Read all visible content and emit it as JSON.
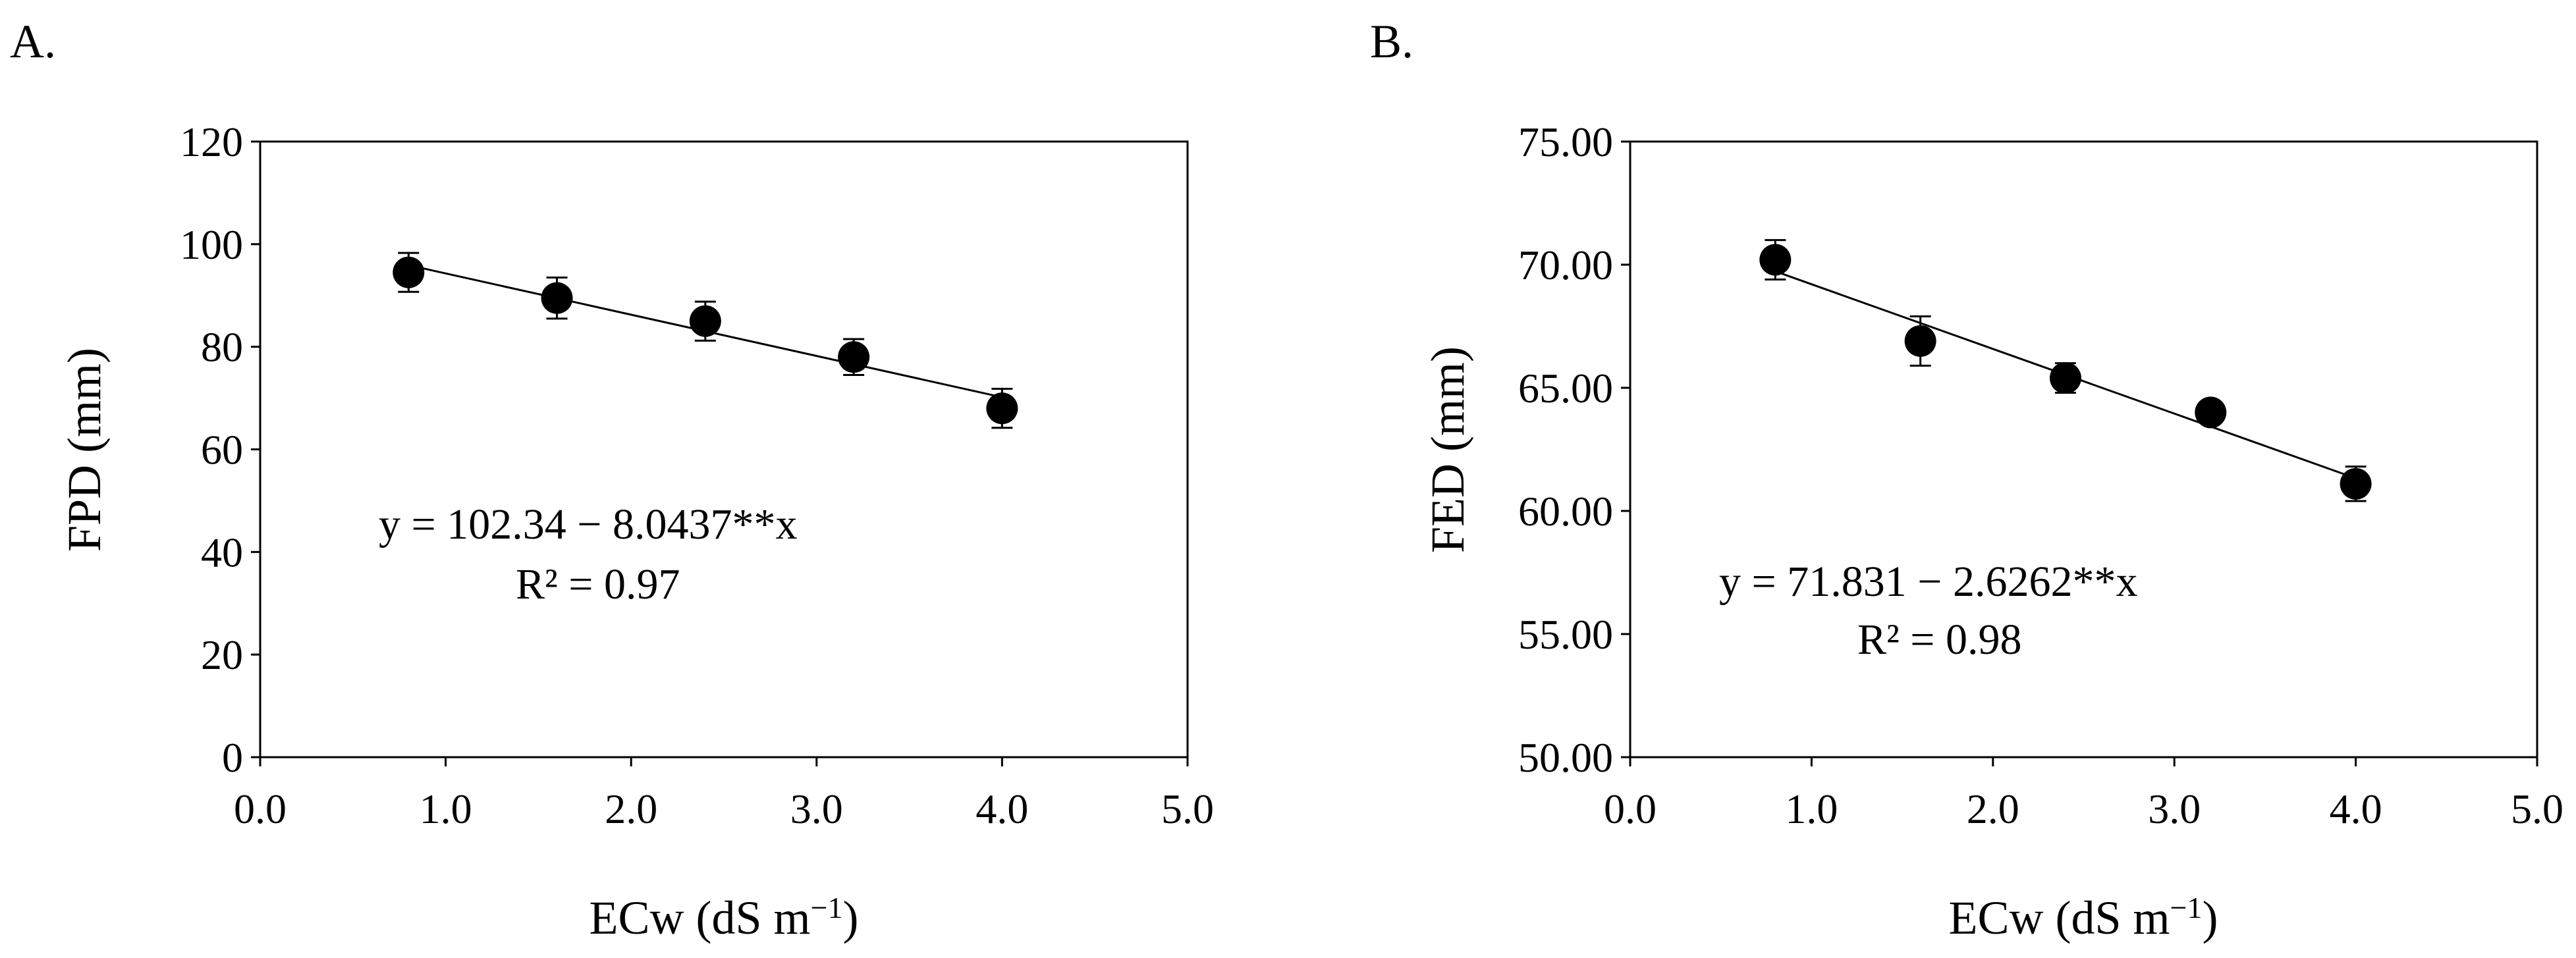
{
  "panels": [
    {
      "label": "A."
    },
    {
      "label": "B."
    }
  ],
  "chart_data": [
    {
      "type": "scatter",
      "panel": "A.",
      "xlabel": "ECw (dS m",
      "xlabel_sup": "−1",
      "xlabel_end": ")",
      "ylabel": "FPD (mm)",
      "xlim": [
        0.0,
        5.0
      ],
      "ylim": [
        0,
        120
      ],
      "x_ticks": [
        0.0,
        1.0,
        2.0,
        3.0,
        4.0,
        5.0
      ],
      "x_tick_labels": [
        "0.0",
        "1.0",
        "2.0",
        "3.0",
        "4.0",
        "5.0"
      ],
      "y_ticks": [
        0,
        20,
        40,
        60,
        80,
        100,
        120
      ],
      "y_tick_labels": [
        "0",
        "20",
        "40",
        "60",
        "80",
        "100",
        "120"
      ],
      "grid": false,
      "series": [
        {
          "x": [
            0.8,
            1.6,
            2.4,
            3.2,
            4.0
          ],
          "y": [
            94.5,
            89.5,
            85.0,
            78.0,
            68.0
          ],
          "error": [
            3.8,
            4.0,
            3.8,
            3.5,
            3.8
          ]
        }
      ],
      "fit": {
        "intercept": 102.34,
        "slope": -8.0437,
        "x_range": [
          0.8,
          4.0
        ]
      },
      "annotations": [
        "y = 102.34 − 8.0437**x",
        "R² = 0.97"
      ]
    },
    {
      "type": "scatter",
      "panel": "B.",
      "xlabel": "ECw (dS m",
      "xlabel_sup": "−1",
      "xlabel_end": ")",
      "ylabel": "FED (mm)",
      "xlim": [
        0.0,
        5.0
      ],
      "ylim": [
        50.0,
        75.0
      ],
      "x_ticks": [
        0.0,
        1.0,
        2.0,
        3.0,
        4.0,
        5.0
      ],
      "x_tick_labels": [
        "0.0",
        "1.0",
        "2.0",
        "3.0",
        "4.0",
        "5.0"
      ],
      "y_ticks": [
        50,
        55,
        60,
        65,
        70,
        75
      ],
      "y_tick_labels": [
        "50.00",
        "55.00",
        "60.00",
        "65.00",
        "70.00",
        "75.00"
      ],
      "grid": false,
      "series": [
        {
          "x": [
            0.8,
            1.6,
            2.4,
            3.2,
            4.0
          ],
          "y": [
            70.2,
            66.9,
            65.4,
            64.0,
            61.1
          ],
          "error": [
            0.8,
            1.0,
            0.6,
            0.4,
            0.7
          ]
        }
      ],
      "fit": {
        "intercept": 71.831,
        "slope": -2.6262,
        "x_range": [
          0.8,
          4.0
        ]
      },
      "annotations": [
        "y = 71.831 − 2.6262**x",
        "R² = 0.98"
      ]
    }
  ]
}
